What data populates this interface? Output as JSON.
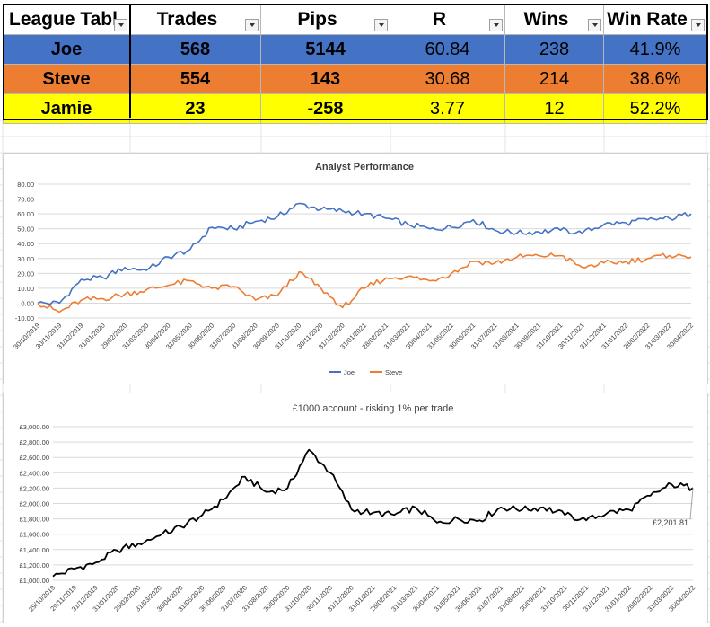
{
  "table": {
    "headers": [
      "League Tabl",
      "Trades",
      "Pips",
      "R",
      "Wins",
      "Win Rate"
    ],
    "rows": [
      {
        "name": "Joe",
        "trades": "568",
        "pips": "5144",
        "r": "60.84",
        "wins": "238",
        "win_rate": "41.9%",
        "color": "#4472c4"
      },
      {
        "name": "Steve",
        "trades": "554",
        "pips": "143",
        "r": "30.68",
        "wins": "214",
        "win_rate": "38.6%",
        "color": "#ed7d31"
      },
      {
        "name": "Jamie",
        "trades": "23",
        "pips": "-258",
        "r": "3.77",
        "wins": "12",
        "win_rate": "52.2%",
        "color": "#ffff00"
      }
    ]
  },
  "chart_data": [
    {
      "type": "line",
      "title": "Analyst Performance",
      "xlabel": "",
      "ylabel": "",
      "ylim": [
        -10,
        80
      ],
      "yticks": [
        "80.00",
        "70.00",
        "60.00",
        "50.00",
        "40.00",
        "30.00",
        "20.00",
        "10.00",
        "0.00",
        "-10.00"
      ],
      "categories": [
        "30/10/2019",
        "30/11/2019",
        "31/12/2019",
        "31/01/2020",
        "29/02/2020",
        "31/03/2020",
        "30/04/2020",
        "31/05/2020",
        "30/06/2020",
        "31/07/2020",
        "31/08/2020",
        "30/09/2020",
        "31/10/2020",
        "30/11/2020",
        "31/12/2020",
        "31/01/2021",
        "28/02/2021",
        "31/03/2021",
        "30/04/2021",
        "31/05/2021",
        "30/06/2021",
        "31/07/2021",
        "31/08/2021",
        "30/09/2021",
        "31/10/2021",
        "30/11/2021",
        "31/12/2021",
        "31/01/2022",
        "28/02/2022",
        "31/03/2022",
        "30/04/2022"
      ],
      "legend": "bottom",
      "grid": true,
      "series": [
        {
          "name": "Joe",
          "color": "#4472c4",
          "values": [
            0,
            0,
            16,
            17,
            24,
            22,
            31,
            36,
            51,
            50,
            55,
            58,
            67,
            63,
            62,
            60,
            57,
            53,
            50,
            51,
            56,
            49,
            47,
            48,
            49,
            47,
            53,
            54,
            56,
            57,
            60
          ]
        },
        {
          "name": "Steve",
          "color": "#ed7d31",
          "values": [
            0,
            -6,
            2,
            3,
            6,
            9,
            12,
            15,
            10,
            11,
            2,
            5,
            21,
            10,
            -3,
            10,
            17,
            18,
            15,
            20,
            28,
            27,
            31,
            32,
            32,
            24,
            27,
            28,
            30,
            32,
            31
          ]
        }
      ]
    },
    {
      "type": "line",
      "title": "£1000 account - risking 1% per trade",
      "xlabel": "",
      "ylabel": "",
      "ylim": [
        1000,
        3000
      ],
      "yticks": [
        "£3,000.00",
        "£2,800.00",
        "£2,600.00",
        "£2,400.00",
        "£2,200.00",
        "£2,000.00",
        "£1,800.00",
        "£1,600.00",
        "£1,400.00",
        "£1,200.00",
        "£1,000.00"
      ],
      "categories": [
        "29/10/2019",
        "29/11/2019",
        "31/12/2019",
        "31/01/2020",
        "29/02/2020",
        "31/03/2020",
        "30/04/2020",
        "31/05/2020",
        "30/06/2020",
        "31/07/2020",
        "31/08/2020",
        "30/09/2020",
        "31/10/2020",
        "30/11/2020",
        "31/12/2020",
        "31/01/2021",
        "28/02/2021",
        "31/03/2021",
        "30/04/2021",
        "31/05/2021",
        "30/06/2021",
        "31/07/2021",
        "31/08/2021",
        "30/09/2021",
        "31/10/2021",
        "30/11/2021",
        "31/12/2021",
        "31/01/2022",
        "28/02/2022",
        "31/03/2022",
        "30/04/2022"
      ],
      "grid": true,
      "series": [
        {
          "color": "#000000",
          "values": [
            1050,
            1150,
            1230,
            1390,
            1480,
            1580,
            1700,
            1850,
            2050,
            2350,
            2150,
            2200,
            2700,
            2400,
            1920,
            1880,
            1850,
            1950,
            1750,
            1800,
            1780,
            1950,
            1920,
            1950,
            1850,
            1780,
            1880,
            1920,
            2100,
            2250,
            2201.81
          ]
        }
      ],
      "annotation": "£2,201.81"
    }
  ]
}
